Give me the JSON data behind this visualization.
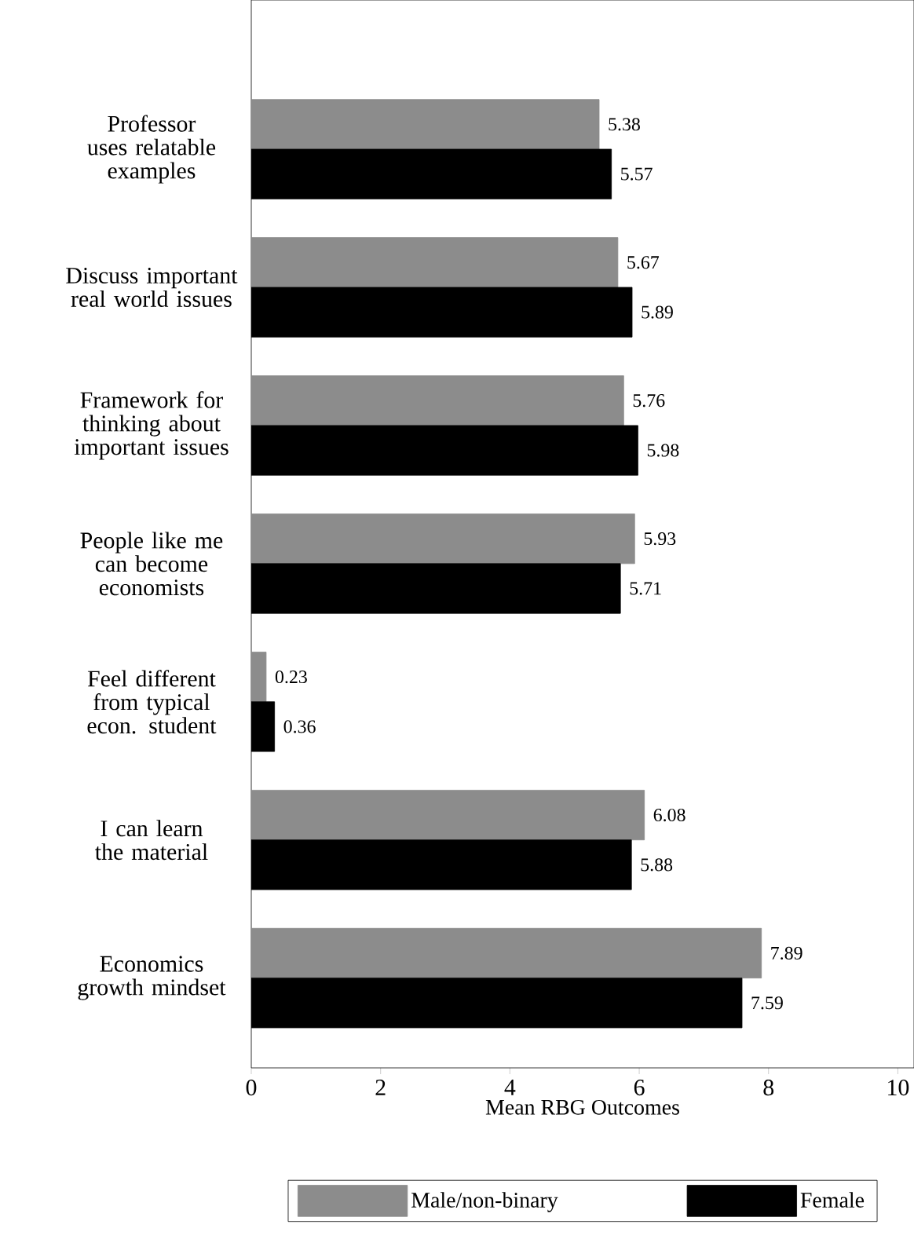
{
  "chart_data": {
    "type": "bar",
    "orientation": "horizontal",
    "xlabel": "Mean RBG Outcomes",
    "categories": [
      "Professor uses relatable examples",
      "Discuss important real world issues",
      "Framework for thinking about important issues",
      "People like me can become economists",
      "Feel different from typical econ. student",
      "I can learn the material",
      "Economics growth mindset"
    ],
    "series": [
      {
        "name": "Male/non-binary",
        "color": "#8c8c8c",
        "values": [
          5.38,
          5.67,
          5.76,
          5.93,
          0.23,
          6.08,
          7.89
        ]
      },
      {
        "name": "Female",
        "color": "#000000",
        "values": [
          5.57,
          5.89,
          5.98,
          5.71,
          0.36,
          5.88,
          7.59
        ]
      }
    ],
    "xlim": [
      0,
      10.25
    ],
    "xticks": [
      0,
      2,
      4,
      6,
      8,
      10
    ],
    "data_labels": true,
    "legend": "bottom",
    "grid": false
  }
}
